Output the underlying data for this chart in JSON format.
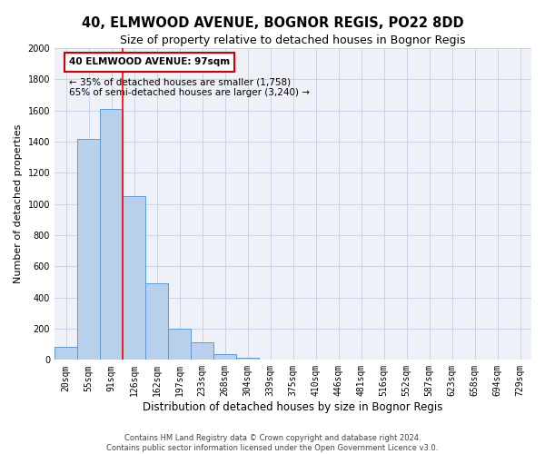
{
  "title": "40, ELMWOOD AVENUE, BOGNOR REGIS, PO22 8DD",
  "subtitle": "Size of property relative to detached houses in Bognor Regis",
  "xlabel": "Distribution of detached houses by size in Bognor Regis",
  "ylabel": "Number of detached properties",
  "footnote1": "Contains HM Land Registry data © Crown copyright and database right 2024.",
  "footnote2": "Contains public sector information licensed under the Open Government Licence v3.0.",
  "bin_labels": [
    "20sqm",
    "55sqm",
    "91sqm",
    "126sqm",
    "162sqm",
    "197sqm",
    "233sqm",
    "268sqm",
    "304sqm",
    "339sqm",
    "375sqm",
    "410sqm",
    "446sqm",
    "481sqm",
    "516sqm",
    "552sqm",
    "587sqm",
    "623sqm",
    "658sqm",
    "694sqm",
    "729sqm"
  ],
  "bar_heights": [
    85,
    1420,
    1610,
    1050,
    490,
    200,
    110,
    35,
    15,
    0,
    0,
    0,
    0,
    0,
    0,
    0,
    0,
    0,
    0,
    0,
    0
  ],
  "bar_color": "#b8d0ea",
  "bar_edge_color": "#5b9bd5",
  "ylim": [
    0,
    2000
  ],
  "yticks": [
    0,
    200,
    400,
    600,
    800,
    1000,
    1200,
    1400,
    1600,
    1800,
    2000
  ],
  "red_line_x": 2.5,
  "annotation_title": "40 ELMWOOD AVENUE: 97sqm",
  "annotation_line1": "← 35% of detached houses are smaller (1,758)",
  "annotation_line2": "65% of semi-detached houses are larger (3,240) →",
  "background_color": "#eef2f8",
  "grid_color": "#c5d5e8",
  "title_fontsize": 10.5,
  "subtitle_fontsize": 9,
  "xlabel_fontsize": 8.5,
  "ylabel_fontsize": 8,
  "tick_fontsize": 7,
  "annot_fontsize": 7.5,
  "footnote_fontsize": 6
}
